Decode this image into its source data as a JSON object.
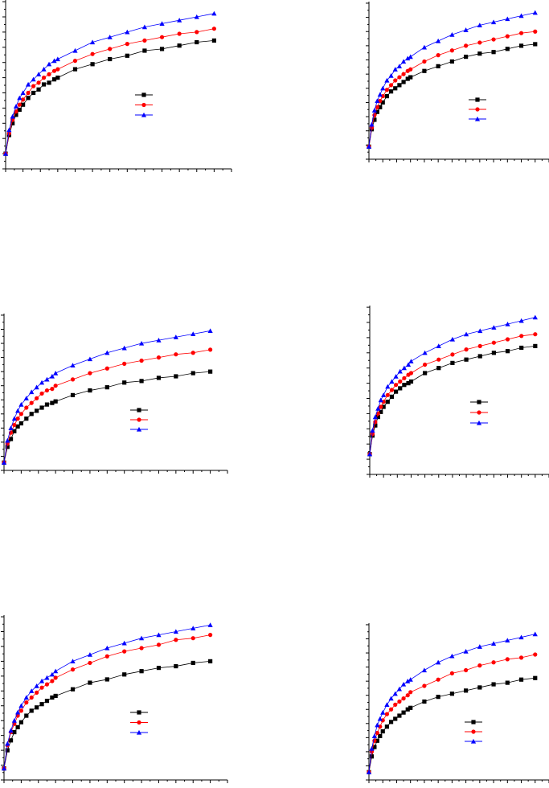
{
  "chart_data": [
    {
      "type": "line",
      "title": "",
      "xlabel": "",
      "ylabel": "",
      "xlim": [
        0,
        130
      ],
      "ylim": [
        0,
        100
      ],
      "grid": false,
      "legend": "center-right",
      "x": [
        0,
        2,
        4,
        6,
        8,
        10,
        13,
        16,
        19,
        22,
        25,
        28,
        30,
        40,
        50,
        60,
        70,
        80,
        90,
        100,
        110,
        120
      ],
      "series": [
        {
          "name": "",
          "color": "#000000",
          "marker": "square",
          "values": [
            9,
            20,
            27,
            32,
            35,
            38,
            42,
            45,
            47,
            50,
            51,
            53,
            54,
            59,
            62,
            65,
            67,
            70,
            71,
            73,
            75,
            76
          ]
        },
        {
          "name": "",
          "color": "#ff0000",
          "marker": "circle",
          "values": [
            9,
            21,
            29,
            34,
            38,
            41,
            45,
            49,
            51,
            54,
            56,
            58,
            59,
            64,
            68,
            71,
            74,
            76,
            78,
            80,
            81,
            83
          ]
        },
        {
          "name": "",
          "color": "#0000ff",
          "marker": "triangle",
          "values": [
            9,
            23,
            31,
            37,
            42,
            45,
            50,
            53,
            56,
            59,
            62,
            64,
            65,
            70,
            75,
            78,
            81,
            84,
            86,
            88,
            90,
            92
          ]
        }
      ]
    },
    {
      "type": "line",
      "title": "",
      "xlabel": "",
      "ylabel": "",
      "xlim": [
        0,
        130
      ],
      "ylim": [
        0,
        100
      ],
      "grid": false,
      "legend": "center-right",
      "x": [
        0,
        2,
        4,
        6,
        8,
        10,
        13,
        16,
        19,
        22,
        25,
        28,
        30,
        40,
        50,
        60,
        70,
        80,
        90,
        100,
        110,
        120
      ],
      "series": [
        {
          "name": "",
          "color": "#000000",
          "marker": "square",
          "values": [
            8,
            19,
            25,
            30,
            33,
            36,
            40,
            43,
            45,
            47,
            49,
            51,
            52,
            56,
            59,
            62,
            65,
            67,
            68,
            70,
            72,
            73
          ]
        },
        {
          "name": "",
          "color": "#ff0000",
          "marker": "circle",
          "values": [
            8,
            20,
            28,
            33,
            37,
            40,
            44,
            47,
            50,
            52,
            54,
            56,
            57,
            62,
            66,
            69,
            72,
            74,
            76,
            78,
            80,
            81
          ]
        },
        {
          "name": "",
          "color": "#0000ff",
          "marker": "triangle",
          "values": [
            8,
            22,
            31,
            37,
            41,
            45,
            50,
            53,
            57,
            59,
            62,
            64,
            65,
            71,
            75,
            79,
            82,
            85,
            87,
            89,
            91,
            93
          ]
        }
      ]
    },
    {
      "type": "line",
      "title": "",
      "xlabel": "",
      "ylabel": "",
      "xlim": [
        0,
        130
      ],
      "ylim": [
        0,
        100
      ],
      "grid": false,
      "legend": "center-right",
      "x": [
        0,
        2,
        4,
        6,
        8,
        10,
        13,
        16,
        19,
        22,
        25,
        28,
        30,
        40,
        50,
        60,
        70,
        80,
        90,
        100,
        110,
        120
      ],
      "series": [
        {
          "name": "",
          "color": "#000000",
          "marker": "square",
          "values": [
            5,
            15,
            20,
            25,
            28,
            30,
            33,
            36,
            38,
            40,
            42,
            43,
            44,
            48,
            51,
            53,
            56,
            57,
            59,
            60,
            62,
            63
          ]
        },
        {
          "name": "",
          "color": "#ff0000",
          "marker": "circle",
          "values": [
            5,
            17,
            24,
            29,
            33,
            36,
            40,
            43,
            46,
            49,
            51,
            52,
            54,
            58,
            62,
            65,
            68,
            70,
            72,
            74,
            75,
            77
          ]
        },
        {
          "name": "",
          "color": "#0000ff",
          "marker": "triangle",
          "values": [
            5,
            19,
            27,
            33,
            38,
            42,
            46,
            50,
            53,
            56,
            58,
            60,
            62,
            67,
            71,
            75,
            78,
            81,
            83,
            85,
            87,
            89
          ]
        }
      ]
    },
    {
      "type": "line",
      "title": "",
      "xlabel": "",
      "ylabel": "",
      "xlim": [
        0,
        130
      ],
      "ylim": [
        0,
        100
      ],
      "grid": false,
      "legend": "center-right",
      "x": [
        0,
        2,
        4,
        6,
        8,
        10,
        13,
        16,
        19,
        22,
        25,
        28,
        30,
        40,
        50,
        60,
        70,
        80,
        90,
        100,
        110,
        120
      ],
      "series": [
        {
          "name": "",
          "color": "#000000",
          "marker": "square",
          "values": [
            12,
            23,
            29,
            34,
            37,
            40,
            43,
            46,
            49,
            51,
            53,
            54,
            55,
            60,
            63,
            66,
            68,
            70,
            72,
            73,
            75,
            76
          ]
        },
        {
          "name": "",
          "color": "#ff0000",
          "marker": "circle",
          "values": [
            12,
            24,
            31,
            36,
            40,
            43,
            47,
            50,
            53,
            55,
            57,
            59,
            60,
            65,
            68,
            71,
            74,
            76,
            78,
            80,
            82,
            83
          ]
        },
        {
          "name": "",
          "color": "#0000ff",
          "marker": "triangle",
          "values": [
            12,
            26,
            34,
            39,
            44,
            47,
            52,
            55,
            58,
            61,
            63,
            65,
            67,
            72,
            76,
            80,
            83,
            85,
            87,
            89,
            91,
            93
          ]
        }
      ]
    },
    {
      "type": "line",
      "title": "",
      "xlabel": "",
      "ylabel": "",
      "xlim": [
        0,
        130
      ],
      "ylim": [
        0,
        100
      ],
      "grid": false,
      "legend": "center-right",
      "x": [
        0,
        2,
        4,
        6,
        8,
        10,
        13,
        16,
        19,
        22,
        25,
        28,
        30,
        40,
        50,
        60,
        70,
        80,
        90,
        100,
        110,
        120
      ],
      "series": [
        {
          "name": "",
          "color": "#000000",
          "marker": "square",
          "values": [
            7,
            18,
            24,
            29,
            32,
            35,
            39,
            42,
            44,
            46,
            48,
            50,
            51,
            55,
            59,
            61,
            64,
            66,
            68,
            69,
            71,
            72
          ]
        },
        {
          "name": "",
          "color": "#ff0000",
          "marker": "circle",
          "values": [
            7,
            21,
            29,
            34,
            39,
            42,
            47,
            50,
            53,
            56,
            58,
            60,
            62,
            67,
            71,
            75,
            78,
            80,
            82,
            85,
            86,
            88
          ]
        },
        {
          "name": "",
          "color": "#0000ff",
          "marker": "triangle",
          "values": [
            7,
            22,
            30,
            36,
            41,
            45,
            50,
            54,
            57,
            60,
            62,
            64,
            66,
            72,
            76,
            80,
            83,
            86,
            88,
            90,
            92,
            94
          ]
        }
      ]
    },
    {
      "type": "line",
      "title": "",
      "xlabel": "",
      "ylabel": "",
      "xlim": [
        0,
        130
      ],
      "ylim": [
        0,
        100
      ],
      "grid": false,
      "legend": "center-right",
      "x": [
        0,
        2,
        4,
        6,
        8,
        10,
        13,
        16,
        19,
        22,
        25,
        28,
        30,
        40,
        50,
        60,
        70,
        80,
        90,
        100,
        110,
        120
      ],
      "series": [
        {
          "name": "",
          "color": "#000000",
          "marker": "square",
          "values": [
            5,
            15,
            21,
            25,
            28,
            31,
            34,
            37,
            39,
            41,
            43,
            45,
            46,
            50,
            53,
            55,
            57,
            59,
            61,
            62,
            64,
            65
          ]
        },
        {
          "name": "",
          "color": "#ff0000",
          "marker": "circle",
          "values": [
            5,
            18,
            25,
            30,
            34,
            38,
            42,
            45,
            48,
            50,
            52,
            54,
            56,
            60,
            64,
            68,
            70,
            73,
            75,
            77,
            78,
            80
          ]
        },
        {
          "name": "",
          "color": "#0000ff",
          "marker": "triangle",
          "values": [
            5,
            20,
            28,
            35,
            39,
            43,
            48,
            52,
            55,
            58,
            61,
            63,
            64,
            70,
            75,
            79,
            82,
            85,
            87,
            89,
            91,
            93
          ]
        }
      ]
    }
  ]
}
